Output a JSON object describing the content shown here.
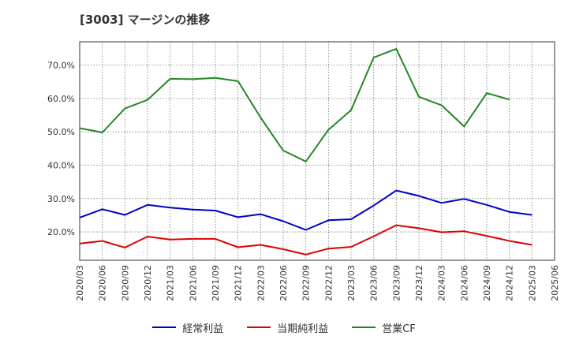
{
  "title": "[3003]  マージンの推移",
  "chart_data": {
    "type": "line",
    "title": "[3003]  マージンの推移",
    "xlabel": "",
    "ylabel": "",
    "x": [
      "2020/03",
      "2020/06",
      "2020/09",
      "2020/12",
      "2021/03",
      "2021/06",
      "2021/09",
      "2021/12",
      "2022/03",
      "2022/06",
      "2022/09",
      "2022/12",
      "2023/03",
      "2023/06",
      "2023/09",
      "2023/12",
      "2024/03",
      "2024/06",
      "2024/09",
      "2024/12",
      "2025/03",
      "2025/06"
    ],
    "yticks": [
      "20.0%",
      "30.0%",
      "40.0%",
      "50.0%",
      "60.0%",
      "70.0%"
    ],
    "ytick_values": [
      20,
      30,
      40,
      50,
      60,
      70
    ],
    "ylim": [
      11.5,
      77
    ],
    "grid": true,
    "legend_position": "bottom",
    "series": [
      {
        "name": "経常利益",
        "color": "#0000cc",
        "values": [
          24.3,
          26.8,
          25.1,
          28.1,
          27.3,
          26.7,
          26.4,
          24.4,
          25.3,
          23.2,
          20.6,
          23.5,
          23.8,
          27.9,
          32.4,
          30.8,
          28.7,
          29.9,
          28.1,
          26.0,
          25.1,
          null
        ]
      },
      {
        "name": "当期純利益",
        "color": "#dd0000",
        "values": [
          16.5,
          17.3,
          15.3,
          18.6,
          17.7,
          17.9,
          17.9,
          15.4,
          16.1,
          14.8,
          13.2,
          15.0,
          15.5,
          18.7,
          22.0,
          21.1,
          19.9,
          20.2,
          18.8,
          17.3,
          16.1,
          null
        ]
      },
      {
        "name": "営業CF",
        "color": "#228822",
        "values": [
          51.1,
          49.8,
          57.0,
          59.6,
          65.9,
          65.8,
          66.2,
          65.2,
          54.3,
          44.4,
          41.1,
          50.6,
          56.5,
          72.3,
          74.9,
          60.5,
          58.0,
          51.6,
          61.6,
          59.7,
          null,
          null
        ]
      }
    ]
  }
}
